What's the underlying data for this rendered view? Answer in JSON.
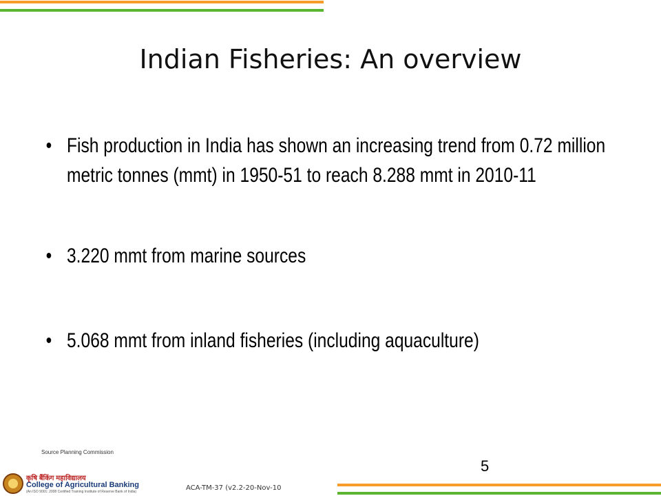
{
  "header": {
    "title": "Indian Fisheries: An overview"
  },
  "bullets": [
    "Fish production in India has shown an increasing trend from 0.72 million metric tonnes (mmt) in 1950-51 to reach 8.288 mmt in 2010-11",
    "3.220 mmt from marine sources",
    "5.068 mmt from inland fisheries (including aquaculture)"
  ],
  "source": "Source Planning Commission",
  "page_number": "5",
  "footer": "ACA-TM-37 (v2.2-20-Nov-10",
  "logo": {
    "hindi": "कृषि बैंकिंग महाविद्यालय",
    "name": "College of Agricultural Banking",
    "subtitle": "(An ISO 9001: 2008 Certified Training Institute of Reserve Bank of India)"
  }
}
